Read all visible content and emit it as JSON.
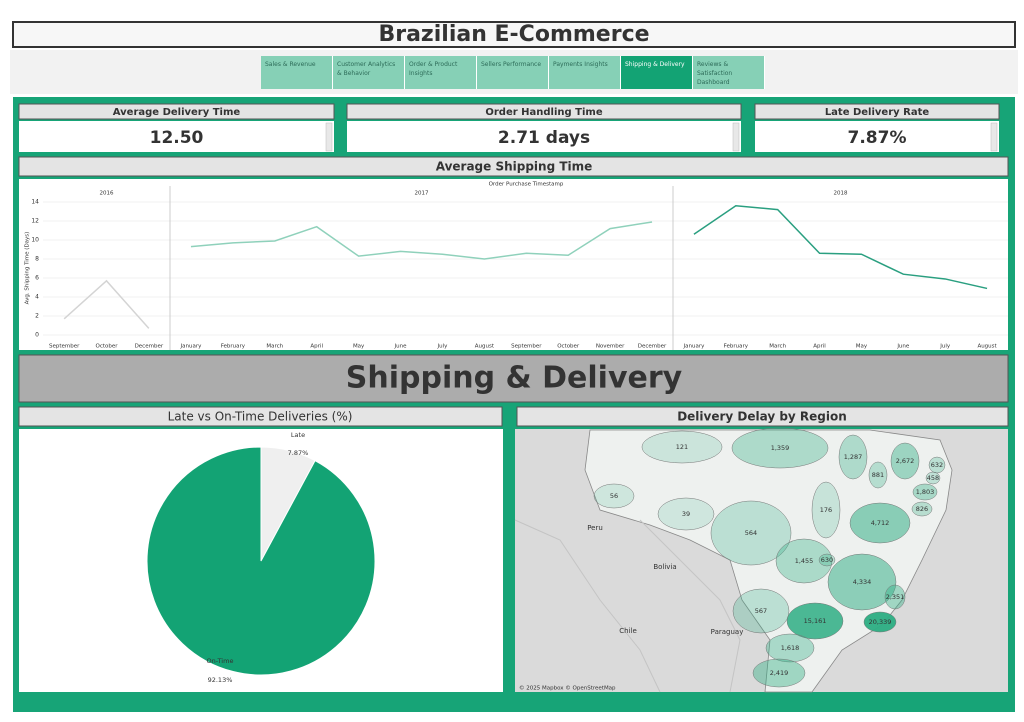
{
  "header": {
    "title": "Brazilian E-Commerce"
  },
  "tabs": [
    {
      "label": "Sales & Revenue",
      "active": false
    },
    {
      "label": "Customer Analytics & Behavior",
      "active": false
    },
    {
      "label": "Order & Product Insights",
      "active": false
    },
    {
      "label": "Sellers Performance",
      "active": false
    },
    {
      "label": "Payments Insights",
      "active": false
    },
    {
      "label": "Shipping & Delivery",
      "active": true
    },
    {
      "label": "Reviews & Satisfaction Dashboard",
      "active": false
    }
  ],
  "kpis": [
    {
      "label": "Average Delivery Time",
      "value": "12.50"
    },
    {
      "label": "Order Handling Time",
      "value": "2.71 days"
    },
    {
      "label": "Late Delivery Rate",
      "value": "7.87%"
    }
  ],
  "section_title": "Shipping & Delivery",
  "chart_data": [
    {
      "type": "line",
      "title": "Average Shipping Time",
      "x_label": "Order Purchase Timestamp",
      "y_label": "Avg. Shipping Time (Days)",
      "ylim": [
        0,
        15
      ],
      "yticks": [
        0,
        2,
        4,
        6,
        8,
        10,
        12,
        14
      ],
      "grid": true,
      "panels": [
        {
          "name": "2016",
          "color": "#d4d4d4",
          "categories": [
            "September",
            "October",
            "December"
          ],
          "values": [
            1.7,
            5.7,
            0.7
          ]
        },
        {
          "name": "2017",
          "color": "#8fd1bb",
          "categories": [
            "January",
            "February",
            "March",
            "April",
            "May",
            "June",
            "July",
            "August",
            "September",
            "October",
            "November",
            "December"
          ],
          "values": [
            9.3,
            9.7,
            9.9,
            11.4,
            8.3,
            8.8,
            8.5,
            8.0,
            8.6,
            8.4,
            11.2,
            11.9
          ]
        },
        {
          "name": "2018",
          "color": "#2a9f80",
          "categories": [
            "January",
            "February",
            "March",
            "April",
            "May",
            "June",
            "July",
            "August"
          ],
          "values": [
            10.6,
            13.6,
            13.2,
            8.6,
            8.5,
            6.4,
            5.9,
            4.9
          ]
        }
      ]
    },
    {
      "type": "pie",
      "title": "Late vs On-Time Deliveries (%)",
      "categories": [
        "Late",
        "On-Time"
      ],
      "values": [
        7.87,
        92.13
      ],
      "value_labels": [
        "7.87%",
        "92.13%"
      ],
      "colors": [
        "#efefef",
        "#13a374"
      ]
    },
    {
      "type": "map",
      "title": "Delivery Delay by Region",
      "color": "#2fae84",
      "regions": [
        {
          "value": 121,
          "label": "121"
        },
        {
          "value": 1359,
          "label": "1,359"
        },
        {
          "value": 1287,
          "label": "1,287"
        },
        {
          "value": 2672,
          "label": "2,672"
        },
        {
          "value": 632,
          "label": "632"
        },
        {
          "value": 881,
          "label": "881"
        },
        {
          "value": 458,
          "label": "458"
        },
        {
          "value": 1803,
          "label": "1,803"
        },
        {
          "value": 826,
          "label": "826"
        },
        {
          "value": 176,
          "label": "176"
        },
        {
          "value": 4712,
          "label": "4,712"
        },
        {
          "value": 39,
          "label": "39"
        },
        {
          "value": 56,
          "label": "56"
        },
        {
          "value": 564,
          "label": "564"
        },
        {
          "value": 1455,
          "label": "1,455"
        },
        {
          "value": 630,
          "label": "630"
        },
        {
          "value": 4334,
          "label": "4,334"
        },
        {
          "value": 2351,
          "label": "2,351"
        },
        {
          "value": 567,
          "label": "567"
        },
        {
          "value": 15161,
          "label": "15,161"
        },
        {
          "value": 20339,
          "label": "20,339"
        },
        {
          "value": 1618,
          "label": "1,618"
        },
        {
          "value": 2419,
          "label": "2,419"
        }
      ],
      "places": [
        "Peru",
        "Bolivia",
        "Paraguay",
        "Chile"
      ],
      "attribution": "© 2025 Mapbox © OpenStreetMap"
    }
  ]
}
